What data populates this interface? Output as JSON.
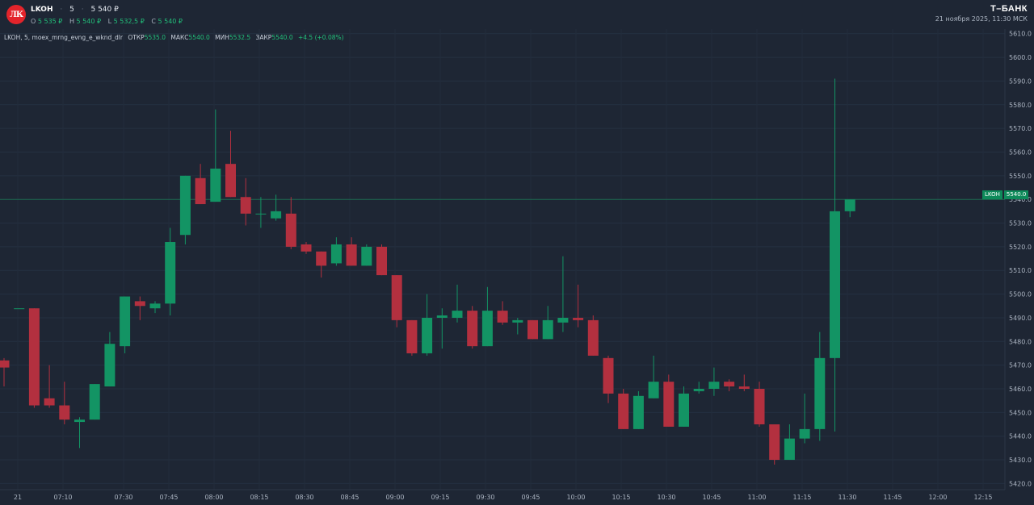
{
  "header": {
    "symbol": "LKOH",
    "interval": "5",
    "price": "5 540 ₽",
    "ohlc": {
      "o_label": "O",
      "o": "5 535 ₽",
      "h_label": "H",
      "h": "5 540 ₽",
      "l_label": "L",
      "l": "5 532,5 ₽",
      "c_label": "C",
      "c": "5 540 ₽"
    },
    "logo_text": "ЛК"
  },
  "brand": {
    "name": "Т–БАНК",
    "datetime": "21 ноября 2025, 11:30 МСК"
  },
  "legend": {
    "title": "LKOH, 5, moex_mrng_evng_e_wknd_dlr",
    "open_label": "ОТКР",
    "open": "5535.0",
    "high_label": "МАКС",
    "high": "5540.0",
    "low_label": "МИН",
    "low": "5532.5",
    "close_label": "ЗАКР",
    "close": "5540.0",
    "change": "+4.5 (+0.08%)"
  },
  "price_tag": {
    "symbol": "LKOH",
    "value": "5540.0"
  },
  "colors": {
    "background": "#1e2634",
    "up": "#139464",
    "down": "#b3303f",
    "last_price_line": "#1c6b4f",
    "axis_text": "#aab3c0"
  },
  "chart_data": {
    "type": "candlestick",
    "interval_minutes": 5,
    "ylim": [
      5414,
      5614
    ],
    "y_ticks": [
      5420,
      5430,
      5440,
      5450,
      5460,
      5470,
      5480,
      5490,
      5500,
      5510,
      5520,
      5530,
      5540,
      5550,
      5560,
      5570,
      5580,
      5590,
      5600,
      5610
    ],
    "x_ticks": [
      "21",
      "07:10",
      "07:30",
      "07:45",
      "08:00",
      "08:15",
      "08:30",
      "08:45",
      "09:00",
      "09:15",
      "09:30",
      "09:45",
      "10:00",
      "10:15",
      "10:30",
      "10:45",
      "11:00",
      "11:15",
      "11:30",
      "11:45",
      "12:00",
      "12:15"
    ],
    "last_price": 5540.0,
    "candles": [
      {
        "o": 5472,
        "h": 5473,
        "l": 5461,
        "c": 5469
      },
      {
        "o": 5494,
        "h": 5494,
        "l": 5494,
        "c": 5494
      },
      {
        "o": 5494,
        "h": 5494,
        "l": 5452,
        "c": 5453
      },
      {
        "o": 5456,
        "h": 5470,
        "l": 5452,
        "c": 5453
      },
      {
        "o": 5453,
        "h": 5463,
        "l": 5445,
        "c": 5447
      },
      {
        "o": 5446,
        "h": 5448,
        "l": 5435,
        "c": 5447
      },
      {
        "o": 5447,
        "h": 5462,
        "l": 5447,
        "c": 5462
      },
      {
        "o": 5461,
        "h": 5484,
        "l": 5461,
        "c": 5479
      },
      {
        "o": 5478,
        "h": 5499,
        "l": 5475,
        "c": 5499
      },
      {
        "o": 5497,
        "h": 5499,
        "l": 5489,
        "c": 5495
      },
      {
        "o": 5494,
        "h": 5497,
        "l": 5492,
        "c": 5496
      },
      {
        "o": 5496,
        "h": 5528,
        "l": 5491,
        "c": 5522
      },
      {
        "o": 5525,
        "h": 5550,
        "l": 5521,
        "c": 5550
      },
      {
        "o": 5549,
        "h": 5555,
        "l": 5538,
        "c": 5538
      },
      {
        "o": 5539,
        "h": 5578,
        "l": 5539,
        "c": 5553
      },
      {
        "o": 5555,
        "h": 5569,
        "l": 5541,
        "c": 5541
      },
      {
        "o": 5541,
        "h": 5549,
        "l": 5529,
        "c": 5534
      },
      {
        "o": 5534,
        "h": 5541,
        "l": 5528,
        "c": 5534
      },
      {
        "o": 5532,
        "h": 5542,
        "l": 5531,
        "c": 5535
      },
      {
        "o": 5534,
        "h": 5541,
        "l": 5519,
        "c": 5520
      },
      {
        "o": 5521,
        "h": 5522,
        "l": 5517,
        "c": 5518
      },
      {
        "o": 5518,
        "h": 5518,
        "l": 5507,
        "c": 5512
      },
      {
        "o": 5513,
        "h": 5524,
        "l": 5512,
        "c": 5521
      },
      {
        "o": 5521,
        "h": 5524,
        "l": 5512,
        "c": 5512
      },
      {
        "o": 5512,
        "h": 5521,
        "l": 5512,
        "c": 5520
      },
      {
        "o": 5520,
        "h": 5521,
        "l": 5508,
        "c": 5508
      },
      {
        "o": 5508,
        "h": 5508,
        "l": 5486,
        "c": 5489
      },
      {
        "o": 5489,
        "h": 5489,
        "l": 5474,
        "c": 5475
      },
      {
        "o": 5475,
        "h": 5500,
        "l": 5474,
        "c": 5490
      },
      {
        "o": 5490,
        "h": 5494,
        "l": 5477,
        "c": 5491
      },
      {
        "o": 5490,
        "h": 5504,
        "l": 5488,
        "c": 5493
      },
      {
        "o": 5493,
        "h": 5495,
        "l": 5477,
        "c": 5478
      },
      {
        "o": 5478,
        "h": 5503,
        "l": 5478,
        "c": 5493
      },
      {
        "o": 5493,
        "h": 5497,
        "l": 5487,
        "c": 5488
      },
      {
        "o": 5488,
        "h": 5490,
        "l": 5483,
        "c": 5489
      },
      {
        "o": 5489,
        "h": 5489,
        "l": 5481,
        "c": 5481
      },
      {
        "o": 5481,
        "h": 5495,
        "l": 5481,
        "c": 5489
      },
      {
        "o": 5488,
        "h": 5516,
        "l": 5484,
        "c": 5490
      },
      {
        "o": 5490,
        "h": 5504,
        "l": 5486,
        "c": 5489
      },
      {
        "o": 5489,
        "h": 5491,
        "l": 5474,
        "c": 5474
      },
      {
        "o": 5473,
        "h": 5474,
        "l": 5454,
        "c": 5458
      },
      {
        "o": 5458,
        "h": 5460,
        "l": 5443,
        "c": 5443
      },
      {
        "o": 5443,
        "h": 5459,
        "l": 5443,
        "c": 5457
      },
      {
        "o": 5456,
        "h": 5474,
        "l": 5456,
        "c": 5463
      },
      {
        "o": 5463,
        "h": 5466,
        "l": 5444,
        "c": 5444
      },
      {
        "o": 5444,
        "h": 5461,
        "l": 5444,
        "c": 5458
      },
      {
        "o": 5459,
        "h": 5463,
        "l": 5458,
        "c": 5460
      },
      {
        "o": 5460,
        "h": 5469,
        "l": 5457,
        "c": 5463
      },
      {
        "o": 5463,
        "h": 5464,
        "l": 5459,
        "c": 5461
      },
      {
        "o": 5461,
        "h": 5466,
        "l": 5459,
        "c": 5460
      },
      {
        "o": 5460,
        "h": 5463,
        "l": 5444,
        "c": 5445
      },
      {
        "o": 5445,
        "h": 5445,
        "l": 5428,
        "c": 5430
      },
      {
        "o": 5430,
        "h": 5445,
        "l": 5430,
        "c": 5439
      },
      {
        "o": 5439,
        "h": 5458,
        "l": 5437,
        "c": 5443
      },
      {
        "o": 5443,
        "h": 5484,
        "l": 5438,
        "c": 5473
      },
      {
        "o": 5473,
        "h": 5591,
        "l": 5442,
        "c": 5535
      },
      {
        "o": 5535,
        "h": 5540,
        "l": 5532.5,
        "c": 5540
      }
    ]
  }
}
